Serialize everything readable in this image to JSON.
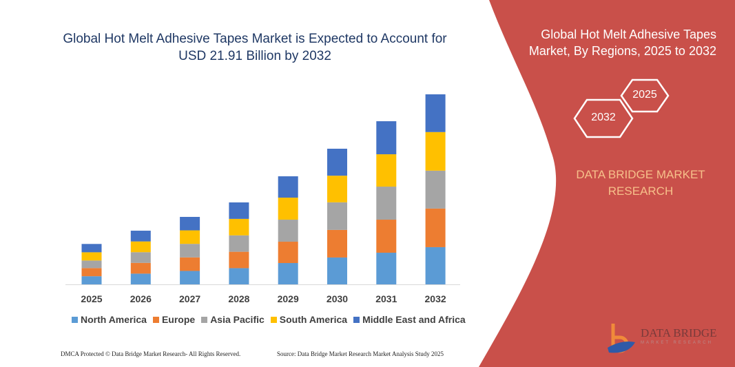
{
  "header": {
    "title": "Global Hot Melt Adhesive Tapes Market is Expected to Account for USD 21.91 Billion by 2032"
  },
  "panel": {
    "title": "Global Hot Melt Adhesive Tapes Market, By Regions, 2025 to 2032",
    "hex_start": "2025",
    "hex_end": "2032",
    "brand": "DATA BRIDGE MARKET RESEARCH",
    "logo_text": "DATA BRIDGE",
    "logo_sub": "MARKET RESEARCH",
    "color": "#c9504a"
  },
  "footer": {
    "left": "DMCA Protected © Data Bridge Market Research- All Rights Reserved.",
    "right": "Source: Data Bridge Market Research Market Analysis Study 2025"
  },
  "chart_data": {
    "type": "bar",
    "stacked": true,
    "grid": false,
    "legend_position": "bottom",
    "categories": [
      "2025",
      "2026",
      "2027",
      "2028",
      "2029",
      "2030",
      "2031",
      "2032"
    ],
    "series": [
      {
        "name": "North America",
        "color": "#5b9bd5",
        "values": [
          0.94,
          1.24,
          1.55,
          1.87,
          2.46,
          3.1,
          3.65,
          4.29
        ]
      },
      {
        "name": "Europe",
        "color": "#ed7d31",
        "values": [
          0.94,
          1.24,
          1.56,
          1.89,
          2.46,
          3.18,
          3.81,
          4.45
        ]
      },
      {
        "name": "Asia Pacific",
        "color": "#a5a5a5",
        "values": [
          0.87,
          1.23,
          1.56,
          1.89,
          2.54,
          3.18,
          3.81,
          4.37
        ]
      },
      {
        "name": "South America",
        "color": "#ffc000",
        "values": [
          0.95,
          1.24,
          1.56,
          1.9,
          2.54,
          3.07,
          3.73,
          4.45
        ]
      },
      {
        "name": "Middle East and Africa",
        "color": "#4472c4",
        "values": [
          0.96,
          1.24,
          1.55,
          1.9,
          2.46,
          3.11,
          3.81,
          4.35
        ]
      }
    ]
  }
}
